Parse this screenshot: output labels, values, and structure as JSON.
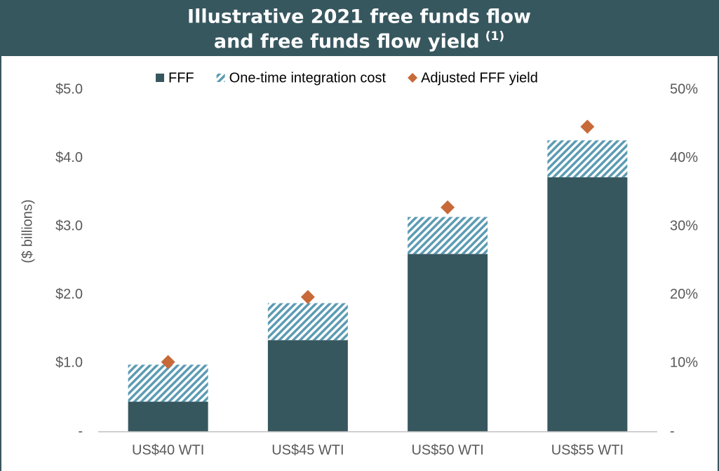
{
  "chart_data": {
    "type": "stacked-bar-with-markers",
    "title": [
      "Illustrative 2021 free funds flow",
      "and free funds flow yield"
    ],
    "title_note": "(1)",
    "ylabel": "($ billions)",
    "categories": [
      "US$40 WTI",
      "US$45 WTI",
      "US$50 WTI",
      "US$55 WTI"
    ],
    "series": [
      {
        "name": "FFF",
        "color": "#37575f",
        "values": [
          0.44,
          1.34,
          2.6,
          3.72
        ]
      },
      {
        "name": "One-time integration cost",
        "color": "#5b9bb3",
        "pattern": "hatch",
        "values": [
          0.54,
          0.54,
          0.54,
          0.54
        ]
      },
      {
        "name": "Adjusted FFF yield",
        "color": "#c8693a",
        "axis": "y2",
        "marker": "diamond",
        "values": [
          10.2,
          19.7,
          32.8,
          44.6
        ]
      }
    ],
    "ylim": [
      0,
      5
    ],
    "yticks": [
      {
        "value": 0,
        "label": "-"
      },
      {
        "value": 1,
        "label": "$1.0"
      },
      {
        "value": 2,
        "label": "$2.0"
      },
      {
        "value": 3,
        "label": "$3.0"
      },
      {
        "value": 4,
        "label": "$4.0"
      },
      {
        "value": 5,
        "label": "$5.0"
      }
    ],
    "y2lim": [
      0,
      50
    ],
    "y2ticks": [
      {
        "value": 0,
        "label": "-"
      },
      {
        "value": 10,
        "label": "10%"
      },
      {
        "value": 20,
        "label": "20%"
      },
      {
        "value": 30,
        "label": "30%"
      },
      {
        "value": 40,
        "label": "40%"
      },
      {
        "value": 50,
        "label": "50%"
      }
    ],
    "legend": "top"
  }
}
